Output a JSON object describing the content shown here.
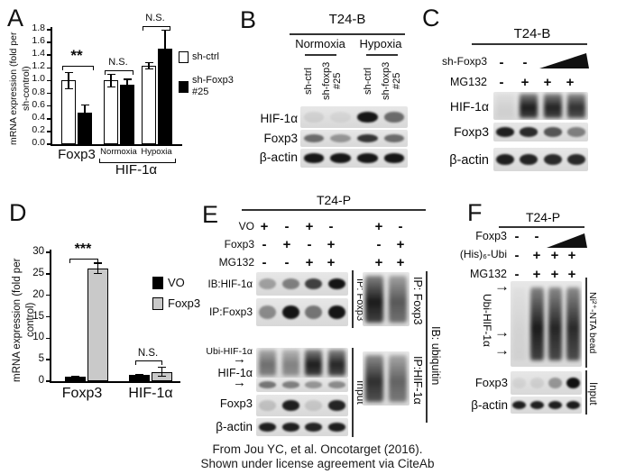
{
  "caption": {
    "line1": "From Jou YC, et al. Oncotarget (2016).",
    "line2": "Shown under license agreement via CiteAb"
  },
  "icons": {
    "arrow_right": "→"
  },
  "chart_data": [
    {
      "panel": "A",
      "type": "bar",
      "title": "",
      "xlabel": "",
      "ylabel": "mRNA expression (fold per sh-control)",
      "ylim": [
        0,
        1.8
      ],
      "ytick_step": 0.2,
      "categories": [
        "Foxp3",
        "Normoxia",
        "Hypoxia"
      ],
      "group_axis_label": "HIF-1α",
      "legend_position": "right",
      "series": [
        {
          "name": "sh-ctrl",
          "fill": "#ffffff",
          "values": [
            1.0,
            1.0,
            1.23
          ],
          "errors": [
            0.13,
            0.1,
            0.05
          ]
        },
        {
          "name": "sh-Foxp3\n#25",
          "fill": "#000000",
          "values": [
            0.5,
            0.94,
            1.5
          ],
          "errors": [
            0.12,
            0.08,
            0.29
          ]
        }
      ],
      "significance": [
        {
          "group": "Foxp3",
          "label": "**"
        },
        {
          "group": "Normoxia",
          "label": "N.S."
        },
        {
          "group": "Hypoxia",
          "label": "N.S."
        }
      ]
    },
    {
      "panel": "D",
      "type": "bar",
      "title": "",
      "xlabel": "",
      "ylabel": "mRNA expression (fold per control)",
      "ylim": [
        0,
        30
      ],
      "ytick_step": 5,
      "categories": [
        "Foxp3",
        "HIF-1α"
      ],
      "legend_position": "right",
      "series": [
        {
          "name": "VO",
          "fill": "#000000",
          "values": [
            1.0,
            1.4
          ],
          "errors": [
            0.1,
            0.15
          ]
        },
        {
          "name": "Foxp3",
          "fill": "#c9c9c9",
          "values": [
            26.3,
            2.2
          ],
          "errors": [
            1.2,
            1.0
          ]
        }
      ],
      "significance": [
        {
          "group": "Foxp3",
          "label": "***"
        },
        {
          "group": "HIF-1α",
          "label": "N.S."
        }
      ]
    }
  ],
  "panel_a": {
    "label": "A"
  },
  "panel_d": {
    "label": "D"
  },
  "panel_b": {
    "label": "B",
    "title": "T24-B",
    "groups": [
      "Normoxia",
      "Hypoxia"
    ],
    "lane_labels": [
      "sh-ctrl",
      "sh-foxp3\n#25",
      "sh-ctrl",
      "sh-foxp3\n#25"
    ],
    "rows": [
      {
        "label": "HIF-1α",
        "bands": [
          0.07,
          0.05,
          0.95,
          0.55
        ]
      },
      {
        "label": "Foxp3",
        "bands": [
          0.55,
          0.35,
          0.8,
          0.55
        ]
      },
      {
        "label": "β-actin",
        "bands": [
          0.95,
          0.95,
          0.95,
          0.95
        ]
      }
    ]
  },
  "panel_c": {
    "label": "C",
    "title": "T24-B",
    "condition_rows": [
      {
        "label": "sh-Foxp3",
        "marks": [
          "-",
          "-"
        ],
        "wedge": true
      },
      {
        "label": "MG132",
        "marks": [
          "-",
          "+",
          "+",
          "+"
        ]
      }
    ],
    "rows": [
      {
        "label": "HIF-1α",
        "bands": [
          0.06,
          0.95,
          0.92,
          0.85
        ],
        "smear": true
      },
      {
        "label": "Foxp3",
        "bands": [
          0.9,
          0.85,
          0.65,
          0.45
        ]
      },
      {
        "label": "β-actin",
        "bands": [
          0.9,
          0.88,
          0.85,
          0.85
        ]
      }
    ]
  },
  "panel_e": {
    "label": "E",
    "title": "T24-P",
    "condition_rows": [
      {
        "label": "VO",
        "left_marks": [
          "+",
          "-",
          "+",
          "-"
        ],
        "right_marks": [
          "+",
          "-"
        ]
      },
      {
        "label": "Foxp3",
        "left_marks": [
          "-",
          "+",
          "-",
          "+"
        ],
        "right_marks": [
          "-",
          "+"
        ]
      },
      {
        "label": "MG132",
        "left_marks": [
          "-",
          "-",
          "+",
          "+"
        ],
        "right_marks": [
          "+",
          "+"
        ]
      }
    ],
    "ip_top": {
      "rows": [
        {
          "label": "IB:HIF-1α",
          "bands": [
            0.3,
            0.45,
            0.75,
            0.95
          ]
        },
        {
          "label": "IP:Foxp3",
          "bands": [
            0.4,
            0.95,
            0.5,
            0.95
          ]
        }
      ],
      "side_label": "IP: Foxp3"
    },
    "input_group": {
      "rows": [
        {
          "label": "Ubi-HIF-1α",
          "bands": [
            0.55,
            0.45,
            0.95,
            0.9
          ],
          "smear": true
        },
        {
          "label": "HIF-1α",
          "bands": [
            0.5,
            0.45,
            0.35,
            0.4
          ]
        },
        {
          "label": "Foxp3",
          "bands": [
            0.15,
            0.9,
            0.12,
            0.88
          ]
        },
        {
          "label": "β-actin",
          "bands": [
            0.9,
            0.9,
            0.88,
            0.9
          ]
        }
      ],
      "side_label": "Input"
    },
    "ip_right_top": {
      "bands": [
        0.95,
        0.65
      ],
      "smear": true,
      "side_label": "IP: Foxp3"
    },
    "ip_right_bottom": {
      "bands": [
        0.85,
        0.6
      ],
      "smear": true,
      "side_label": "IP:HIF-1α"
    },
    "ib_label": "IB: ubiquitin"
  },
  "panel_f": {
    "label": "F",
    "title": "T24-P",
    "condition_rows": [
      {
        "label": "Foxp3",
        "marks": [
          "-",
          "-"
        ],
        "wedge": true
      },
      {
        "label": "(His)₆-Ubi",
        "marks": [
          "-",
          "+",
          "+",
          "+"
        ]
      },
      {
        "label": "MG132",
        "marks": [
          "-",
          "+",
          "+",
          "+"
        ]
      }
    ],
    "pulldown": {
      "left_label": "Ubi-HIF-1α",
      "right_label": "Ni²⁺-NTA bead",
      "bands": [
        0.05,
        0.95,
        0.9,
        0.88
      ],
      "smear": true
    },
    "input_rows": [
      {
        "label": "Foxp3",
        "bands": [
          0.06,
          0.08,
          0.35,
          0.97
        ]
      },
      {
        "label": "β-actin",
        "bands": [
          0.9,
          0.9,
          0.9,
          0.92
        ]
      }
    ],
    "input_label": "Input"
  }
}
